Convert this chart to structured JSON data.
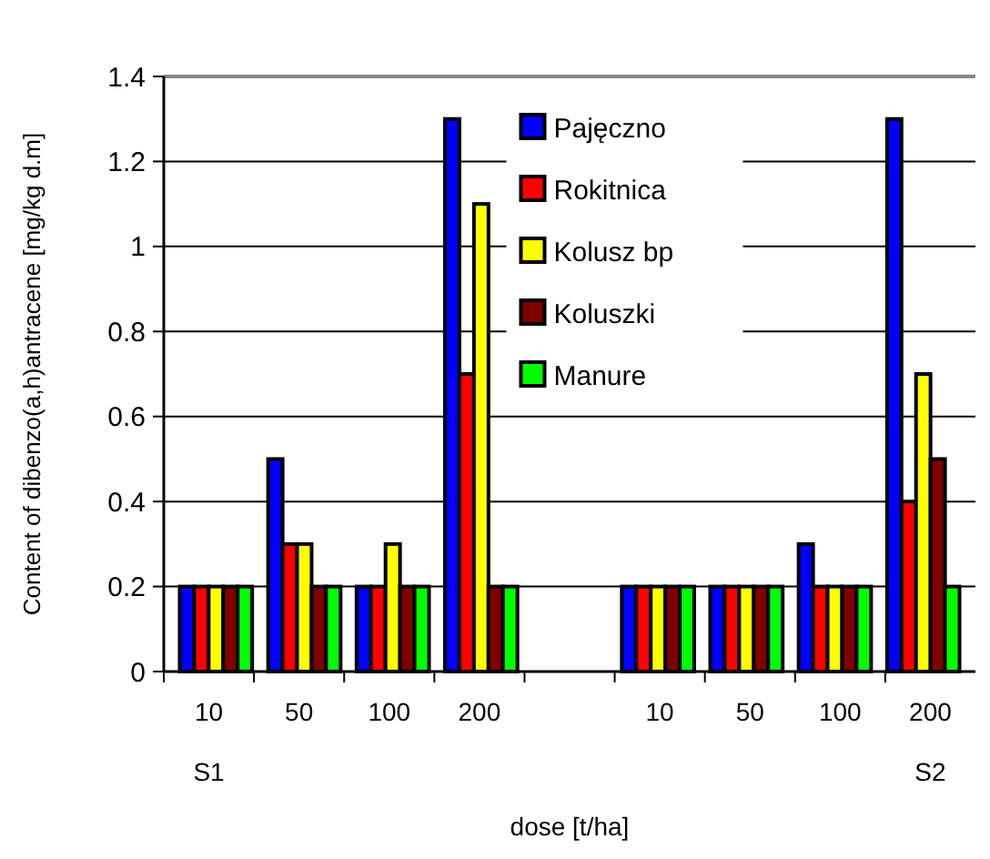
{
  "chart_data": {
    "type": "bar",
    "xlabel": "dose [t/ha]",
    "ylabel": "Content of dibenzo(a,h)antracene [mg/kg d.m]",
    "categories": [
      "10",
      "50",
      "100",
      "200",
      null,
      "10",
      "50",
      "100",
      "200"
    ],
    "series": [
      {
        "name": "Pajęczno",
        "color": "#0000ff",
        "values": [
          0.2,
          0.5,
          0.2,
          1.3,
          null,
          0.2,
          0.2,
          0.3,
          1.3
        ]
      },
      {
        "name": "Rokitnica",
        "color": "#ff0000",
        "values": [
          0.2,
          0.3,
          0.2,
          0.7,
          null,
          0.2,
          0.2,
          0.2,
          0.4
        ]
      },
      {
        "name": "Kolusz bp",
        "color": "#ffff00",
        "values": [
          0.2,
          0.3,
          0.3,
          1.1,
          null,
          0.2,
          0.2,
          0.2,
          0.7
        ]
      },
      {
        "name": "Koluszki",
        "color": "#800000",
        "values": [
          0.2,
          0.2,
          0.2,
          0.2,
          null,
          0.2,
          0.2,
          0.2,
          0.5
        ]
      },
      {
        "name": "Manure",
        "color": "#00ff00",
        "values": [
          0.2,
          0.2,
          0.2,
          0.2,
          null,
          0.2,
          0.2,
          0.2,
          0.2
        ]
      }
    ],
    "ylim": [
      0,
      1.4
    ],
    "yticks": [
      0,
      0.2,
      0.4,
      0.6,
      0.8,
      1,
      1.2,
      1.4
    ],
    "grid": "y",
    "legend": "top",
    "annotations": [
      "S1",
      "S2"
    ]
  }
}
